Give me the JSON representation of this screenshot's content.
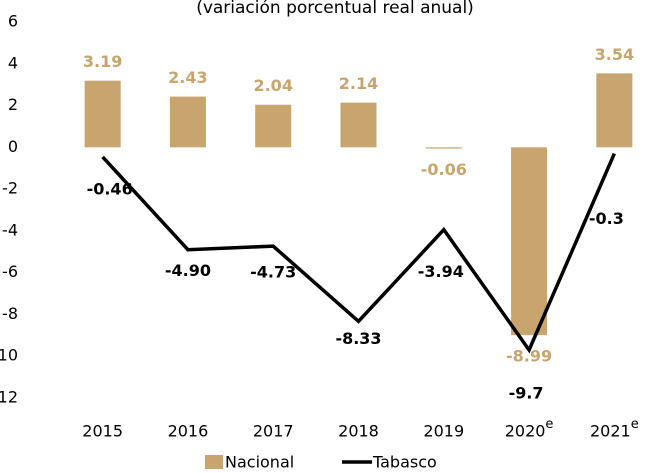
{
  "chart_data": {
    "type": "bar_line",
    "subtitle": "(variación porcentual real anual)",
    "categories": [
      "2015",
      "2016",
      "2017",
      "2018",
      "2019",
      "2020",
      "2021"
    ],
    "category_notes": [
      null,
      null,
      null,
      null,
      null,
      "e",
      "e"
    ],
    "series": [
      {
        "name": "Nacional",
        "type": "bar",
        "color": "#c8a46e",
        "values": [
          3.19,
          2.43,
          2.04,
          2.14,
          -0.06,
          -8.99,
          3.54
        ]
      },
      {
        "name": "Tabasco",
        "type": "line",
        "color": "#000000",
        "values": [
          -0.46,
          -4.9,
          -4.73,
          -8.33,
          -3.94,
          -9.7,
          -0.3
        ],
        "value_labels": [
          "-0.46",
          "-4.90",
          "-4.73",
          "-8.33",
          "-3.94",
          "-9.7",
          "-0.3"
        ]
      }
    ],
    "ylim": [
      -12,
      6
    ],
    "yticks": [
      -12,
      -10,
      -8,
      -6,
      -4,
      -2,
      0,
      2,
      4,
      6
    ],
    "grid": false,
    "legend": "bottom"
  }
}
